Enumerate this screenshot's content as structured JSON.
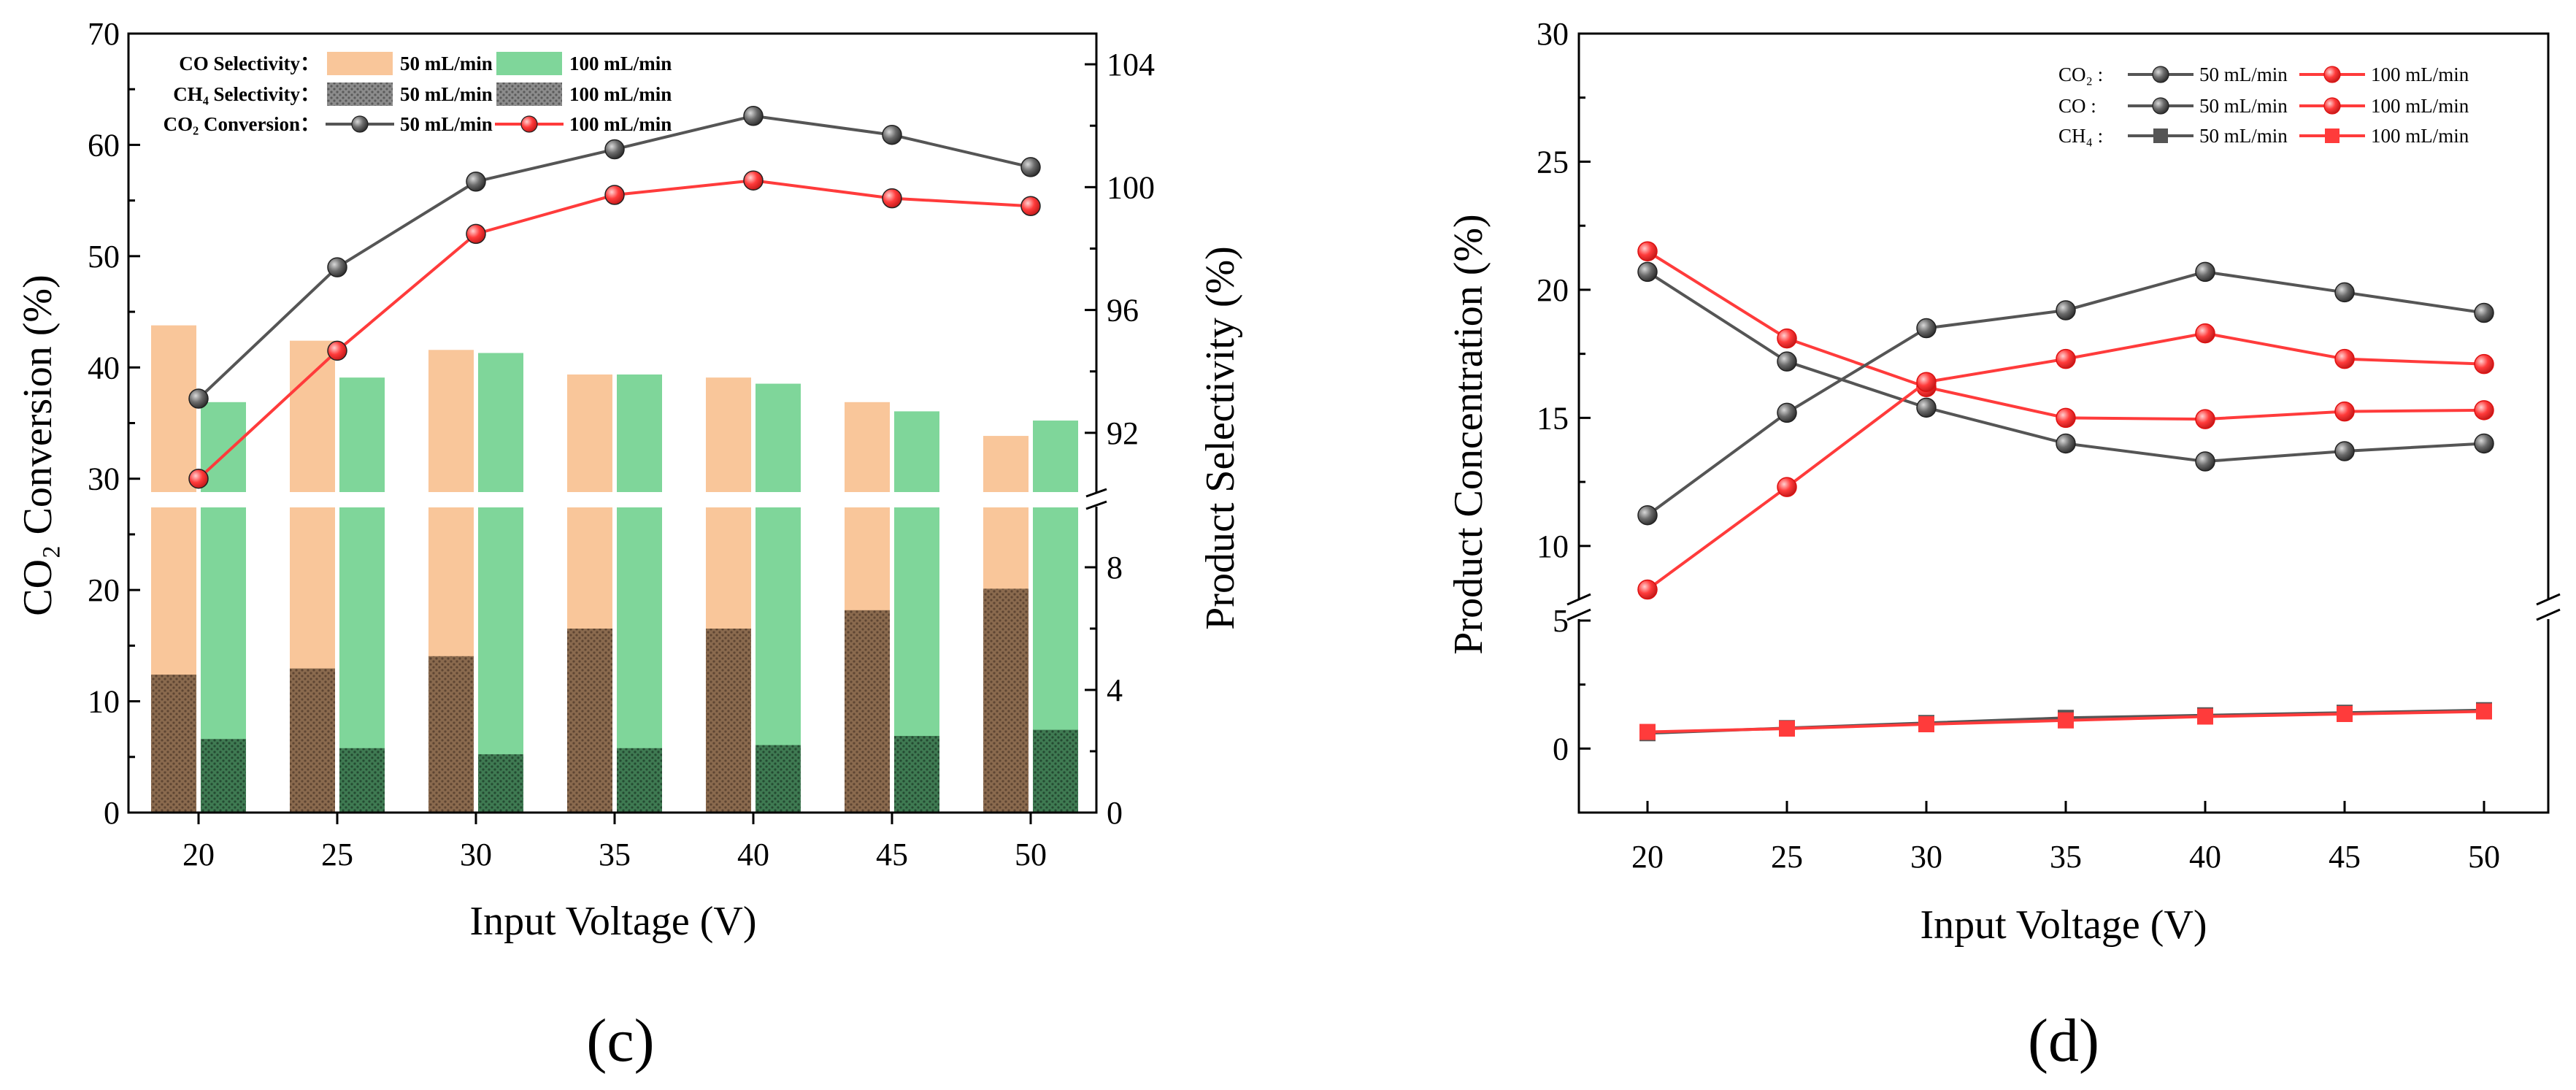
{
  "chart_data": [
    {
      "panel": "(c)",
      "type": "bar",
      "categories": [
        20,
        25,
        30,
        35,
        40,
        45,
        50
      ],
      "xlabel": "Input Voltage (V)",
      "ylabel_left": "CO₂ Conversion (%)",
      "ylabel_right": "Product Selectivity (%)",
      "xticks": [
        "20",
        "25",
        "30",
        "35",
        "40",
        "45",
        "50"
      ],
      "ylim_left": [
        0,
        70
      ],
      "yticks_left": [
        "0",
        "10",
        "20",
        "30",
        "40",
        "50",
        "60",
        "70"
      ],
      "right_axis": {
        "upper": {
          "range": [
            90,
            105
          ],
          "ticks": [
            "92",
            "96",
            "100",
            "104"
          ]
        },
        "lower": {
          "range": [
            0,
            10
          ],
          "ticks": [
            "0",
            "4",
            "8"
          ]
        }
      },
      "legend": {
        "rows": [
          {
            "label": "CO  Selectivity：",
            "a": "50 mL/min",
            "b": "100 mL/min"
          },
          {
            "label": "CH₄ Selectivity：",
            "a": "50 mL/min",
            "b": "100 mL/min"
          },
          {
            "label": "CO₂ Conversion：",
            "a": "50 mL/min",
            "b": "100 mL/min"
          }
        ]
      },
      "colors": {
        "co_50": "#f9c69a",
        "co_100": "#7fd69a",
        "line_50": "#555555",
        "line_100": "#ff3b3b"
      },
      "series": [
        {
          "name": "CO₂ Conversion 50 mL/min",
          "kind": "line",
          "values": [
            37.2,
            49.0,
            56.7,
            59.6,
            62.6,
            60.9,
            58.0
          ]
        },
        {
          "name": "CO₂ Conversion 100 mL/min",
          "kind": "line",
          "values": [
            30.0,
            41.5,
            52.0,
            55.5,
            56.8,
            55.2,
            54.5
          ]
        },
        {
          "name": "CO Selectivity 50 mL/min",
          "kind": "bar",
          "values": [
            95.5,
            95.0,
            94.7,
            93.9,
            93.8,
            93.0,
            91.9
          ]
        },
        {
          "name": "CO Selectivity 100 mL/min",
          "kind": "bar",
          "values": [
            93.0,
            93.8,
            94.6,
            93.9,
            93.6,
            92.7,
            92.4
          ]
        },
        {
          "name": "CH₄ Selectivity 50 mL/min",
          "kind": "bar",
          "values": [
            4.5,
            4.7,
            5.1,
            6.0,
            6.0,
            6.6,
            7.3
          ]
        },
        {
          "name": "CH₄ Selectivity 100 mL/min",
          "kind": "bar",
          "values": [
            2.4,
            2.1,
            1.9,
            2.1,
            2.2,
            2.5,
            2.7
          ]
        }
      ]
    },
    {
      "panel": "(d)",
      "type": "line",
      "x": [
        20,
        25,
        30,
        35,
        40,
        45,
        50
      ],
      "xlabel": "Input Voltage (V)",
      "ylabel": "Product Concentration (%)",
      "xticks": [
        "20",
        "25",
        "30",
        "35",
        "40",
        "45",
        "50"
      ],
      "yticks": [
        "0",
        "5",
        "10",
        "15",
        "20",
        "25",
        "30"
      ],
      "ylim": [
        -2.5,
        30
      ],
      "axis_break": [
        5,
        8
      ],
      "legend": {
        "rows": [
          {
            "label": "CO₂ :",
            "a": "50 mL/min",
            "b": "100 mL/min"
          },
          {
            "label": "CO  :",
            "a": "50 mL/min",
            "b": "100 mL/min"
          },
          {
            "label": "CH₄ :",
            "a": "50 mL/min",
            "b": "100 mL/min"
          }
        ]
      },
      "series": [
        {
          "name": "CO₂ 50 mL/min",
          "marker": "sphere",
          "color": "#555555",
          "values": [
            20.7,
            17.2,
            15.4,
            14.0,
            13.3,
            13.7,
            14.0
          ]
        },
        {
          "name": "CO₂ 100 mL/min",
          "marker": "circle",
          "color": "#ff3b3b",
          "values": [
            21.5,
            18.1,
            16.2,
            15.0,
            14.95,
            15.25,
            15.3
          ]
        },
        {
          "name": "CO 50 mL/min",
          "marker": "circle",
          "color": "#555555",
          "values": [
            11.2,
            15.2,
            18.5,
            19.2,
            20.7,
            19.9,
            19.1
          ]
        },
        {
          "name": "CO 100 mL/min",
          "marker": "circle",
          "color": "#ff3b3b",
          "values": [
            8.3,
            12.3,
            16.4,
            17.3,
            18.3,
            17.3,
            17.1
          ]
        },
        {
          "name": "CH₄ 50 mL/min",
          "marker": "square",
          "color": "#555555",
          "values": [
            0.6,
            0.8,
            1.0,
            1.2,
            1.3,
            1.4,
            1.5
          ]
        },
        {
          "name": "CH₄ 100 mL/min",
          "marker": "square",
          "color": "#ff3b3b",
          "values": [
            0.65,
            0.78,
            0.95,
            1.1,
            1.25,
            1.35,
            1.45
          ]
        }
      ]
    }
  ]
}
